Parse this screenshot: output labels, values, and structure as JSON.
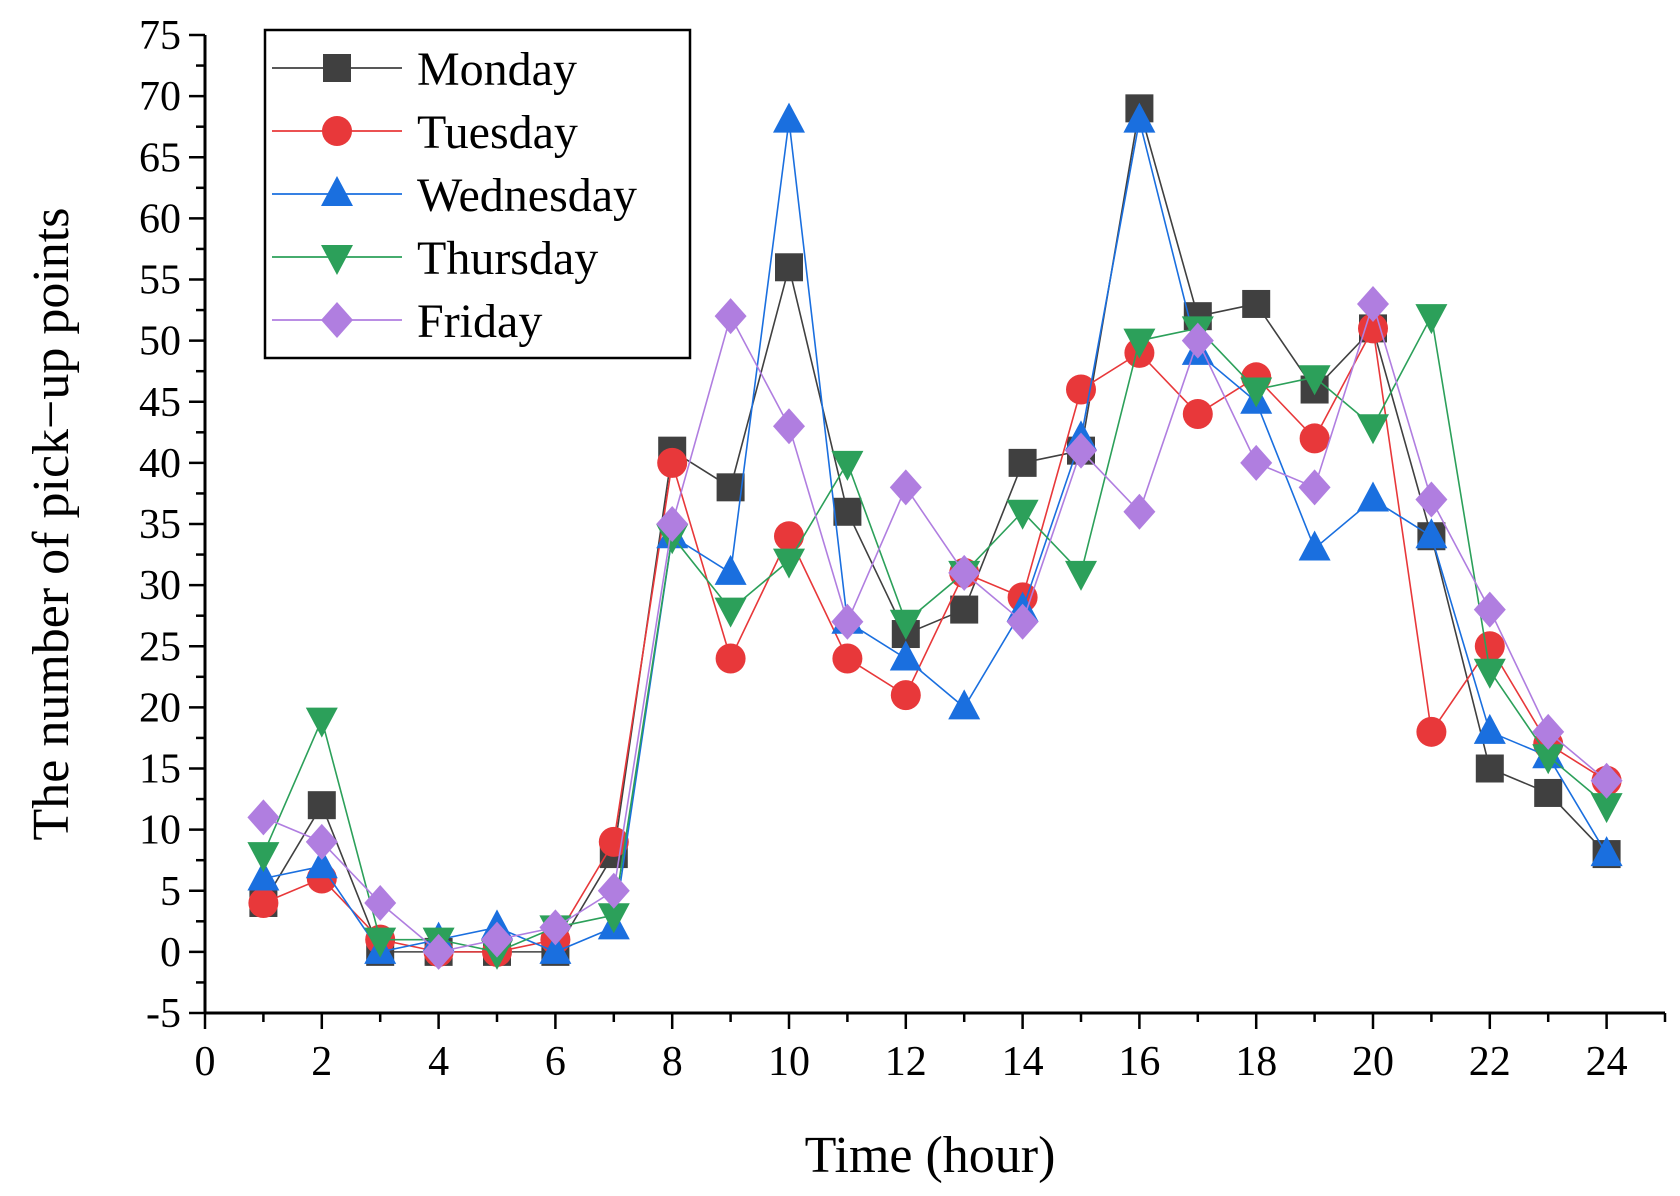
{
  "chart_data": {
    "type": "line",
    "title": "",
    "xlabel": "Time (hour)",
    "ylabel": "The number of pick−up points",
    "xlim": [
      0,
      25
    ],
    "ylim": [
      -5,
      75
    ],
    "x_ticks": [
      0,
      2,
      4,
      6,
      8,
      10,
      12,
      14,
      16,
      18,
      20,
      22,
      24
    ],
    "y_ticks": [
      -5,
      0,
      5,
      10,
      15,
      20,
      25,
      30,
      35,
      40,
      45,
      50,
      55,
      60,
      65,
      70,
      75
    ],
    "grid": false,
    "legend_position": "top-left",
    "x": [
      1,
      2,
      3,
      4,
      5,
      6,
      7,
      8,
      9,
      10,
      11,
      12,
      13,
      14,
      15,
      16,
      17,
      18,
      19,
      20,
      21,
      22,
      23,
      24
    ],
    "series": [
      {
        "name": "Monday",
        "color": "#404040",
        "marker": "square",
        "values": [
          4,
          12,
          0,
          0,
          0,
          0,
          8,
          41,
          38,
          56,
          36,
          26,
          28,
          40,
          41,
          69,
          52,
          53,
          46,
          51,
          34,
          15,
          13,
          8
        ]
      },
      {
        "name": "Tuesday",
        "color": "#e8383a",
        "marker": "circle",
        "values": [
          4,
          6,
          1,
          0,
          0,
          1,
          9,
          40,
          24,
          34,
          24,
          21,
          31,
          29,
          46,
          49,
          44,
          47,
          42,
          51,
          18,
          25,
          17,
          14
        ]
      },
      {
        "name": "Wednesday",
        "color": "#1a6fdf",
        "marker": "triangle-up",
        "values": [
          6,
          7,
          0,
          1,
          2,
          0,
          2,
          34,
          31,
          68,
          27,
          24,
          20,
          28,
          42,
          68,
          49,
          45,
          33,
          37,
          34,
          18,
          16,
          8
        ]
      },
      {
        "name": "Thursday",
        "color": "#2ca05a",
        "marker": "triangle-down",
        "values": [
          8,
          19,
          1,
          1,
          0,
          2,
          3,
          34,
          28,
          32,
          40,
          27,
          31,
          36,
          31,
          50,
          51,
          46,
          47,
          43,
          52,
          23,
          16,
          12
        ]
      },
      {
        "name": "Friday",
        "color": "#b07ee0",
        "marker": "diamond",
        "values": [
          11,
          9,
          4,
          0,
          1,
          2,
          5,
          35,
          52,
          43,
          27,
          38,
          31,
          27,
          41,
          36,
          50,
          40,
          38,
          53,
          37,
          28,
          18,
          14
        ]
      }
    ]
  }
}
